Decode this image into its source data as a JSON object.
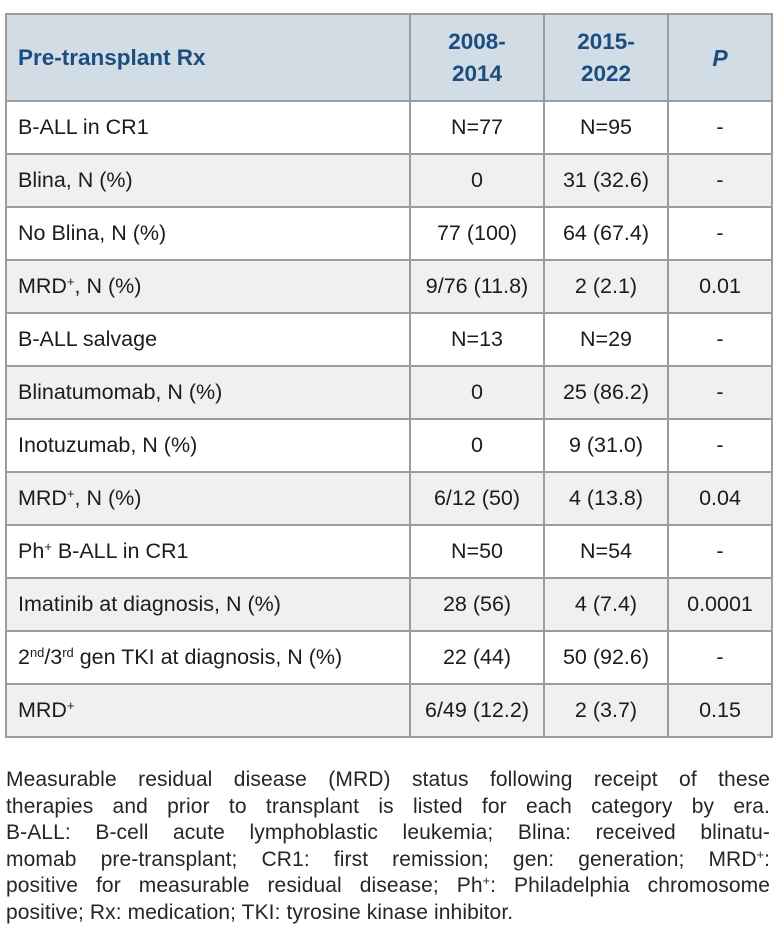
{
  "table": {
    "header": {
      "rx_label": "Pre-transplant Rx",
      "era1_html": "2008-<br>2014",
      "era2_html": "2015-<br>2022",
      "p_label": "P"
    },
    "rows": [
      {
        "label_html": "B-ALL in CR1",
        "era1": "N=77",
        "era2": "N=95",
        "p": "-"
      },
      {
        "label_html": "Blina, N (%)",
        "era1": "0",
        "era2": "31 (32.6)",
        "p": "-"
      },
      {
        "label_html": "No Blina, N (%)",
        "era1": "77 (100)",
        "era2": "64 (67.4)",
        "p": "-"
      },
      {
        "label_html": "MRD<sup>+</sup>, N (%)",
        "era1": "9/76 (11.8)",
        "era2": "2 (2.1)",
        "p": "0.01"
      },
      {
        "label_html": "B-ALL salvage",
        "era1": "N=13",
        "era2": "N=29",
        "p": "-"
      },
      {
        "label_html": "Blinatumomab, N (%)",
        "era1": "0",
        "era2": "25 (86.2)",
        "p": "-"
      },
      {
        "label_html": "Inotuzumab, N (%)",
        "era1": "0",
        "era2": "9 (31.0)",
        "p": "-"
      },
      {
        "label_html": "MRD<sup>+</sup>, N (%)",
        "era1": "6/12 (50)",
        "era2": "4 (13.8)",
        "p": "0.04"
      },
      {
        "label_html": "Ph<sup>+</sup> B-ALL in CR1",
        "era1": "N=50",
        "era2": "N=54",
        "p": "-"
      },
      {
        "label_html": "Imatinib at diagnosis, N (%)",
        "era1": "28 (56)",
        "era2": "4 (7.4)",
        "p": "0.0001"
      },
      {
        "label_html": "2<sup>nd</sup>/3<sup>rd</sup> gen TKI at diagnosis, N (%)",
        "era1": "22 (44)",
        "era2": "50 (92.6)",
        "p": "-"
      },
      {
        "label_html": "MRD<sup>+</sup>",
        "era1": "6/49 (12.2)",
        "era2": "2 (3.7)",
        "p": "0.15"
      }
    ]
  },
  "footnote": {
    "lines_html": [
      "Measurable residual disease (MRD) status following receipt of these",
      "therapies and prior to transplant is listed for each category by era.",
      "B-ALL: B-cell acute lymphoblastic leukemia; Blina: received blinatu-",
      "momab pre-transplant; CR1: first remission; gen: generation; MRD<sup>+</sup>:",
      "positive for measurable residual disease; Ph<sup>+</sup>: Philadelphia chromosome",
      "positive; Rx: medication; TKI: tyrosine kinase inhibitor."
    ]
  },
  "colors": {
    "header_bg": "#d2dce5",
    "header_text": "#1b4d80",
    "alt_row_bg": "#f0f0f0",
    "border": "#9c9c9c",
    "body_text": "#1c1c1c",
    "footnote_text": "#262626"
  }
}
